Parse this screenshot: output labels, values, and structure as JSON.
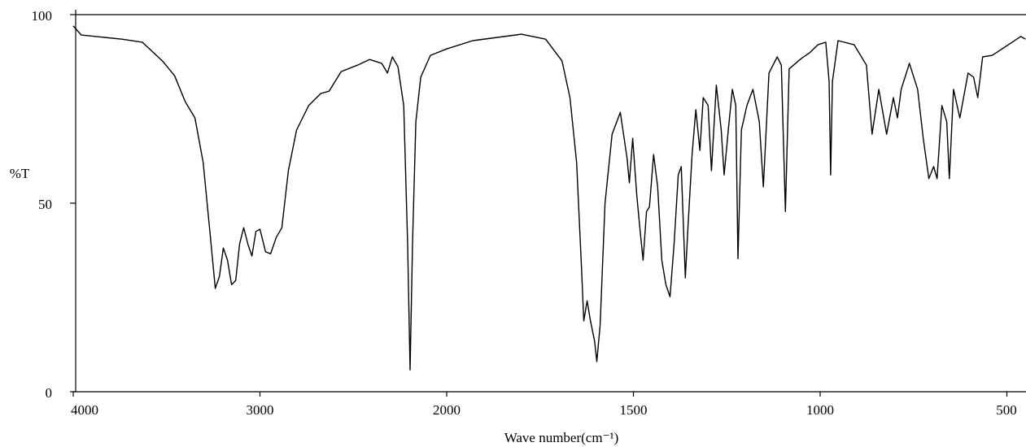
{
  "chart_data": {
    "type": "line",
    "x_label": "Wave number(cm⁻¹)",
    "y_label": "%T",
    "color": "#000000",
    "x": [
      4000,
      3957,
      3739,
      3630,
      3522,
      3457,
      3400,
      3348,
      3304,
      3270,
      3239,
      3217,
      3196,
      3174,
      3152,
      3130,
      3109,
      3087,
      3065,
      3043,
      3022,
      3000,
      2970,
      2943,
      2913,
      2883,
      2848,
      2804,
      2739,
      2674,
      2630,
      2565,
      2478,
      2413,
      2348,
      2317,
      2291,
      2261,
      2230,
      2209,
      2196,
      2183,
      2165,
      2139,
      2087,
      2000,
      1930,
      1800,
      1735,
      1691,
      1670,
      1652,
      1639,
      1633,
      1624,
      1615,
      1604,
      1598,
      1589,
      1576,
      1557,
      1535,
      1517,
      1511,
      1502,
      1491,
      1482,
      1474,
      1465,
      1457,
      1446,
      1435,
      1424,
      1413,
      1402,
      1391,
      1380,
      1372,
      1361,
      1354,
      1343,
      1333,
      1322,
      1313,
      1300,
      1291,
      1278,
      1265,
      1257,
      1246,
      1235,
      1226,
      1220,
      1211,
      1196,
      1180,
      1163,
      1152,
      1137,
      1115,
      1104,
      1093,
      1083,
      1050,
      1028,
      1006,
      985,
      976,
      972,
      967,
      952,
      909,
      876,
      861,
      843,
      822,
      804,
      793,
      783,
      761,
      739,
      724,
      709,
      696,
      687,
      674,
      661,
      654,
      643,
      626,
      604,
      589,
      578,
      565,
      539,
      496,
      463,
      450
    ],
    "values": [
      97,
      94.6,
      93.5,
      92.7,
      87.7,
      83.8,
      76.9,
      72.6,
      60.8,
      43.5,
      27.4,
      30.6,
      38.1,
      34.9,
      28.4,
      29.5,
      39.2,
      43.5,
      39.2,
      36.0,
      42.5,
      43.1,
      37.1,
      36.6,
      40.9,
      43.5,
      58.6,
      69.4,
      75.9,
      79.1,
      79.7,
      84.9,
      86.6,
      88.1,
      87.1,
      84.5,
      88.8,
      86.2,
      75.9,
      39.2,
      5.8,
      39.2,
      71.6,
      83.4,
      89.2,
      90.9,
      93.1,
      94.8,
      93.5,
      87.7,
      78.0,
      60.8,
      32.8,
      18.8,
      24.1,
      18.8,
      13.4,
      8.0,
      17.7,
      50.0,
      68.3,
      74.1,
      61.9,
      55.4,
      67.2,
      52.2,
      42.5,
      34.9,
      47.8,
      49.0,
      62.9,
      54.3,
      34.9,
      28.4,
      25.2,
      39.2,
      57.5,
      59.7,
      30.2,
      43.5,
      62.9,
      74.8,
      64.0,
      78.0,
      75.9,
      58.6,
      81.3,
      69.4,
      57.5,
      69.4,
      80.2,
      75.9,
      35.3,
      69.4,
      75.9,
      80.2,
      71.6,
      54.3,
      84.5,
      88.8,
      86.6,
      47.8,
      85.6,
      88.4,
      89.9,
      92.0,
      92.7,
      82.3,
      57.5,
      82.3,
      93.1,
      92.0,
      86.6,
      68.3,
      80.2,
      68.3,
      78.0,
      72.6,
      80.2,
      87.1,
      80.2,
      67.2,
      56.5,
      59.7,
      56.5,
      75.9,
      71.6,
      56.5,
      80.2,
      72.6,
      84.5,
      83.4,
      78.0,
      88.8,
      89.2,
      92.0,
      94.2,
      93.5
    ],
    "xlim": [
      4000,
      450
    ],
    "xticks": [
      4000,
      3000,
      2000,
      1500,
      1000,
      500
    ],
    "ylim": [
      0,
      100
    ],
    "yticks": [
      0,
      50,
      100
    ]
  }
}
